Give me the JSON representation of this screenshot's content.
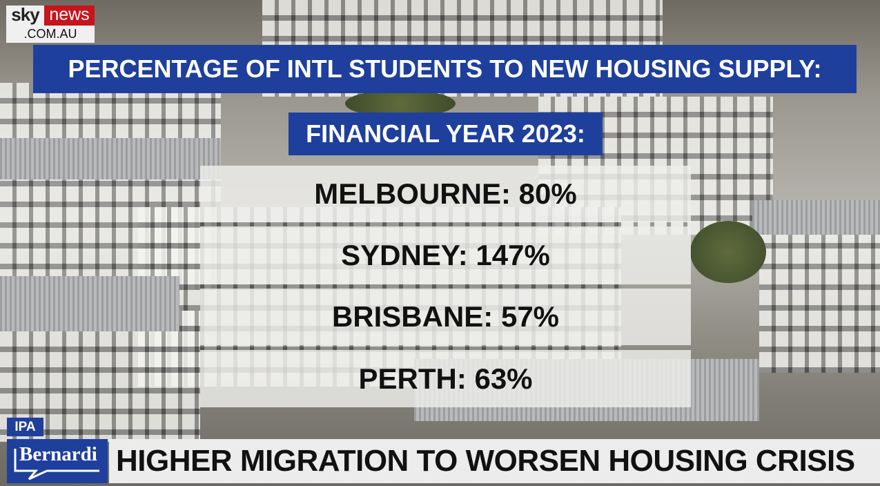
{
  "logo": {
    "brand_left": "sky",
    "brand_right": "news",
    "domain": ".COM.AU"
  },
  "graphic": {
    "title": "PERCENTAGE OF INTL STUDENTS TO NEW HOUSING SUPPLY:",
    "subtitle": "FINANCIAL YEAR 2023:",
    "rows": [
      {
        "label": "MELBOURNE: 80%"
      },
      {
        "label": "SYDNEY: 147%"
      },
      {
        "label": "BRISBANE: 57%"
      },
      {
        "label": "PERTH: 63%"
      }
    ]
  },
  "lower_third": {
    "tag": "IPA",
    "show": "Bernardi",
    "headline": "HIGHER MIGRATION TO WORSEN HOUSING CRISIS"
  },
  "colors": {
    "accent_blue": "#1f3f9c",
    "sky_red": "#c8141c",
    "panel": "#eeeeec"
  }
}
